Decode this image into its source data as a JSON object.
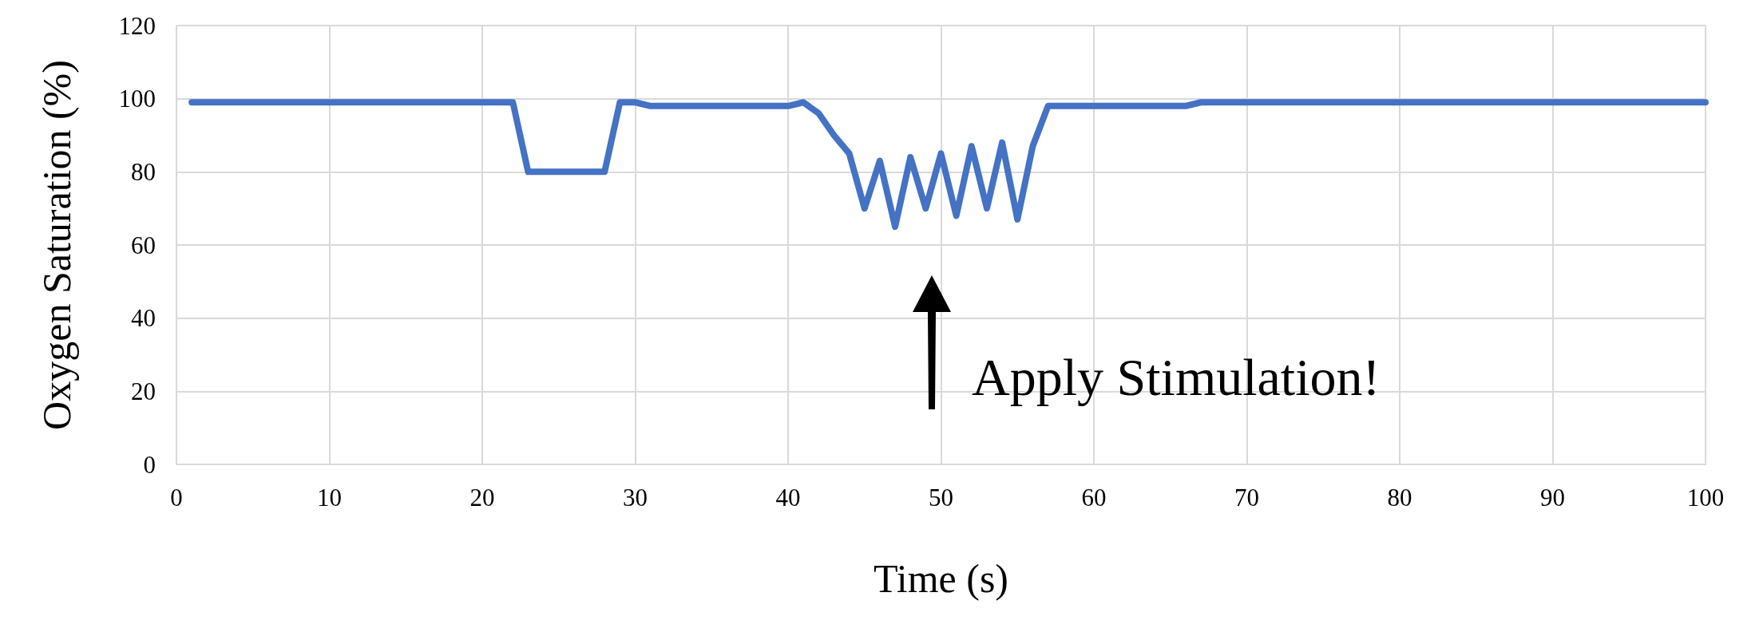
{
  "chart_data": {
    "type": "line",
    "xlabel": "Time (s)",
    "ylabel": "Oxygen Saturation (%)",
    "x": [
      1,
      22,
      23,
      28,
      29,
      30,
      31,
      40,
      41,
      42,
      43,
      44,
      45,
      46,
      47,
      48,
      49,
      50,
      51,
      52,
      53,
      54,
      55,
      56,
      57,
      66,
      67,
      100
    ],
    "series": [
      {
        "color": "#4472c4",
        "values": [
          99,
          99,
          80,
          80,
          99,
          99,
          98,
          98,
          99,
          96,
          90,
          85,
          70,
          83,
          65,
          84,
          70,
          85,
          68,
          87,
          70,
          88,
          67,
          87,
          98,
          98,
          99,
          99
        ]
      }
    ],
    "xlim": [
      0,
      100
    ],
    "xticks": [
      0,
      10,
      20,
      30,
      40,
      50,
      60,
      70,
      80,
      90,
      100
    ],
    "ylim": [
      0,
      120
    ],
    "yticks": [
      0,
      20,
      40,
      60,
      80,
      100,
      120
    ],
    "grid": true,
    "line_style": "solid",
    "annotations": [
      "Apply Stimulation!"
    ]
  }
}
